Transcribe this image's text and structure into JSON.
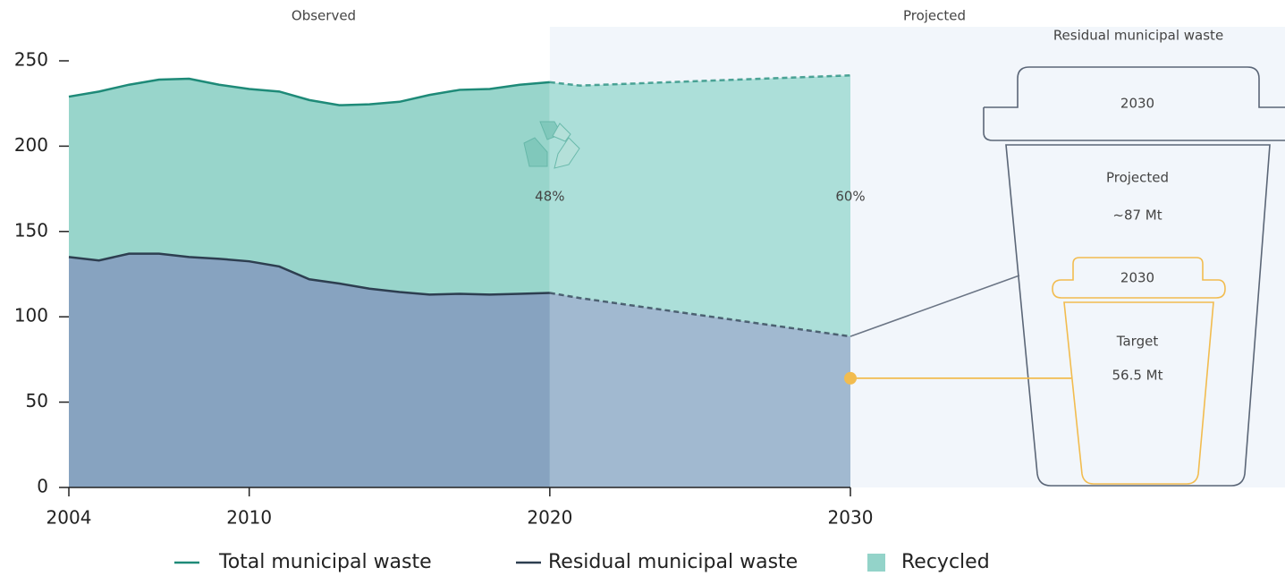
{
  "chart_data": {
    "type": "area",
    "x": [
      2004,
      2005,
      2006,
      2007,
      2008,
      2009,
      2010,
      2011,
      2012,
      2013,
      2014,
      2015,
      2016,
      2017,
      2018,
      2019,
      2020,
      2021,
      2030
    ],
    "xlim": [
      2004,
      2030
    ],
    "xticks": [
      2004,
      2010,
      2020,
      2030
    ],
    "ylim": [
      0,
      250
    ],
    "yticks": [
      0,
      50,
      100,
      150,
      200,
      250
    ],
    "projection_start": 2020,
    "period_labels": [
      "Observed",
      "Projected"
    ],
    "series": [
      {
        "name": "Total municipal waste",
        "color": "#1e8a78",
        "fill": "#98d5cb",
        "projected_fill": "#acdfd9",
        "values": [
          229,
          232,
          236,
          239,
          239.5,
          236,
          233.5,
          232,
          227,
          224,
          224.5,
          226,
          230,
          233,
          233.5,
          236,
          237.5,
          null,
          null
        ],
        "projected_values": [
          null,
          null,
          null,
          null,
          null,
          null,
          null,
          null,
          null,
          null,
          null,
          null,
          null,
          null,
          null,
          null,
          237.5,
          235.5,
          241.5
        ]
      },
      {
        "name": "Residual municipal waste",
        "color": "#2d3e50",
        "fill": "#87a3c0",
        "projected_fill": "#a1b9d0",
        "values": [
          135,
          133,
          137,
          137,
          135,
          134,
          132.5,
          129.5,
          122,
          119.5,
          116.5,
          114.5,
          113,
          113.5,
          113,
          113.5,
          114,
          null,
          null
        ],
        "projected_values": [
          null,
          null,
          null,
          null,
          null,
          null,
          null,
          null,
          null,
          null,
          null,
          null,
          null,
          null,
          null,
          null,
          114,
          111,
          88.5
        ]
      }
    ],
    "recycled": {
      "name": "Recycled",
      "color": "#93d3c9"
    },
    "recycling_rates": {
      "x": [
        2020,
        2030
      ],
      "values": [
        48,
        60
      ],
      "value_labels": [
        "48%",
        "60%"
      ]
    },
    "target_point": {
      "x": 2030,
      "value": 64,
      "color": "#f2bc4f"
    },
    "bins_panel": {
      "title": "Residual municipal waste",
      "projected": {
        "year": "2030",
        "label": "Projected",
        "amount": "~87 Mt"
      },
      "target": {
        "year": "2030",
        "label": "Target",
        "amount": "56.5 Mt"
      }
    }
  }
}
